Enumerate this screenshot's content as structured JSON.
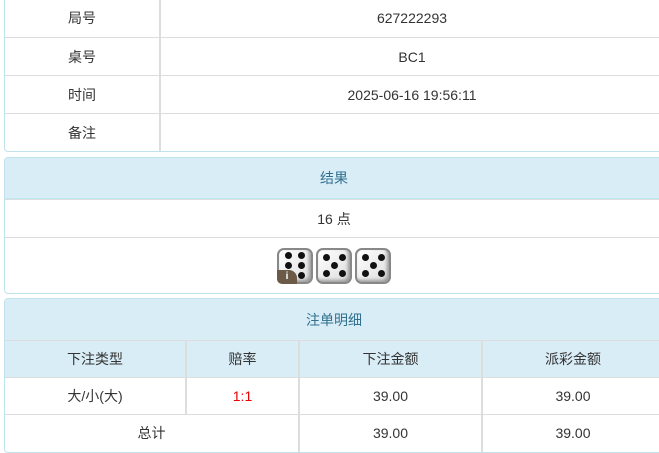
{
  "info": {
    "rows": [
      {
        "label": "局号",
        "value": "627222293"
      },
      {
        "label": "桌号",
        "value": "BC1"
      },
      {
        "label": "时间",
        "value": "2025-06-16 19:56:11"
      },
      {
        "label": "备注",
        "value": ""
      }
    ]
  },
  "result": {
    "title": "结果",
    "points": "16 点",
    "dice": [
      6,
      5,
      5
    ],
    "badge": "i"
  },
  "bets": {
    "title": "注单明细",
    "headers": [
      "下注类型",
      "赔率",
      "下注金额",
      "派彩金额"
    ],
    "rows": [
      {
        "type": "大/小(大)",
        "odds": "1:1",
        "amount": "39.00",
        "payout": "39.00"
      }
    ],
    "total": {
      "label": "总计",
      "amount": "39.00",
      "payout": "39.00"
    },
    "odds_color": "#ee0000"
  }
}
